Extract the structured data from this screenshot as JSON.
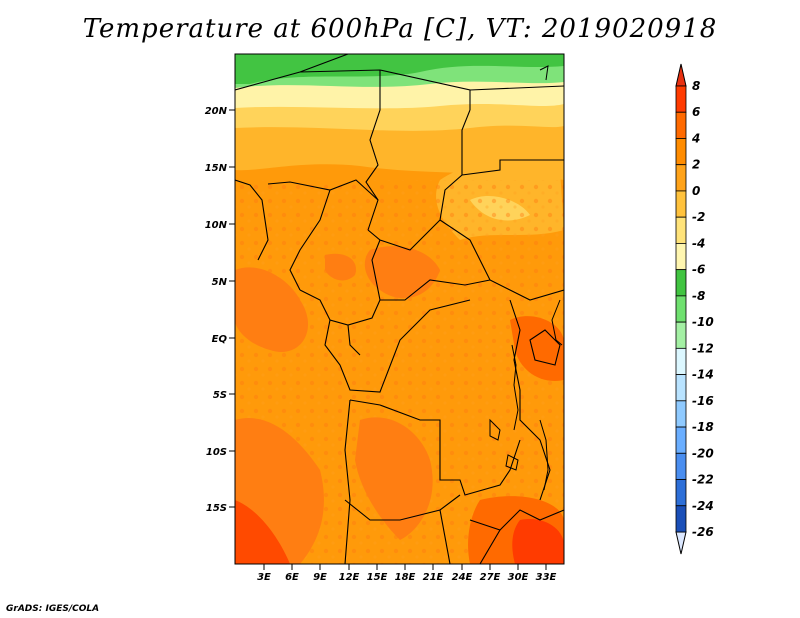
{
  "title": "Temperature at 600hPa [C], VT: 2019020918",
  "credit": "GrADS: IGES/COLA",
  "map": {
    "lat_labels": [
      "20N",
      "15N",
      "10N",
      "5N",
      "EQ",
      "5S",
      "10S",
      "15S"
    ],
    "lon_labels": [
      "3E",
      "6E",
      "9E",
      "12E",
      "15E",
      "18E",
      "21E",
      "24E",
      "27E",
      "30E",
      "33E"
    ]
  },
  "colorbar": {
    "labels": [
      "8",
      "6",
      "4",
      "2",
      "0",
      "-2",
      "-4",
      "-6",
      "-8",
      "-10",
      "-12",
      "-14",
      "-16",
      "-18",
      "-20",
      "-22",
      "-24",
      "-26"
    ],
    "colors": [
      "#ff3b00",
      "#ff6a00",
      "#ff8c00",
      "#ffa31a",
      "#ffc23d",
      "#ffe37a",
      "#fff6b0",
      "#41c441",
      "#6fe06f",
      "#a4f0a4",
      "#dcf7ff",
      "#b9e3ff",
      "#8fcaff",
      "#6aaeff",
      "#4a8ef0",
      "#2d6fd8",
      "#1a4fb8",
      "#0c2f90",
      "#061a5e"
    ],
    "over_color": "#e83010",
    "under_color": "#dce8ff"
  }
}
